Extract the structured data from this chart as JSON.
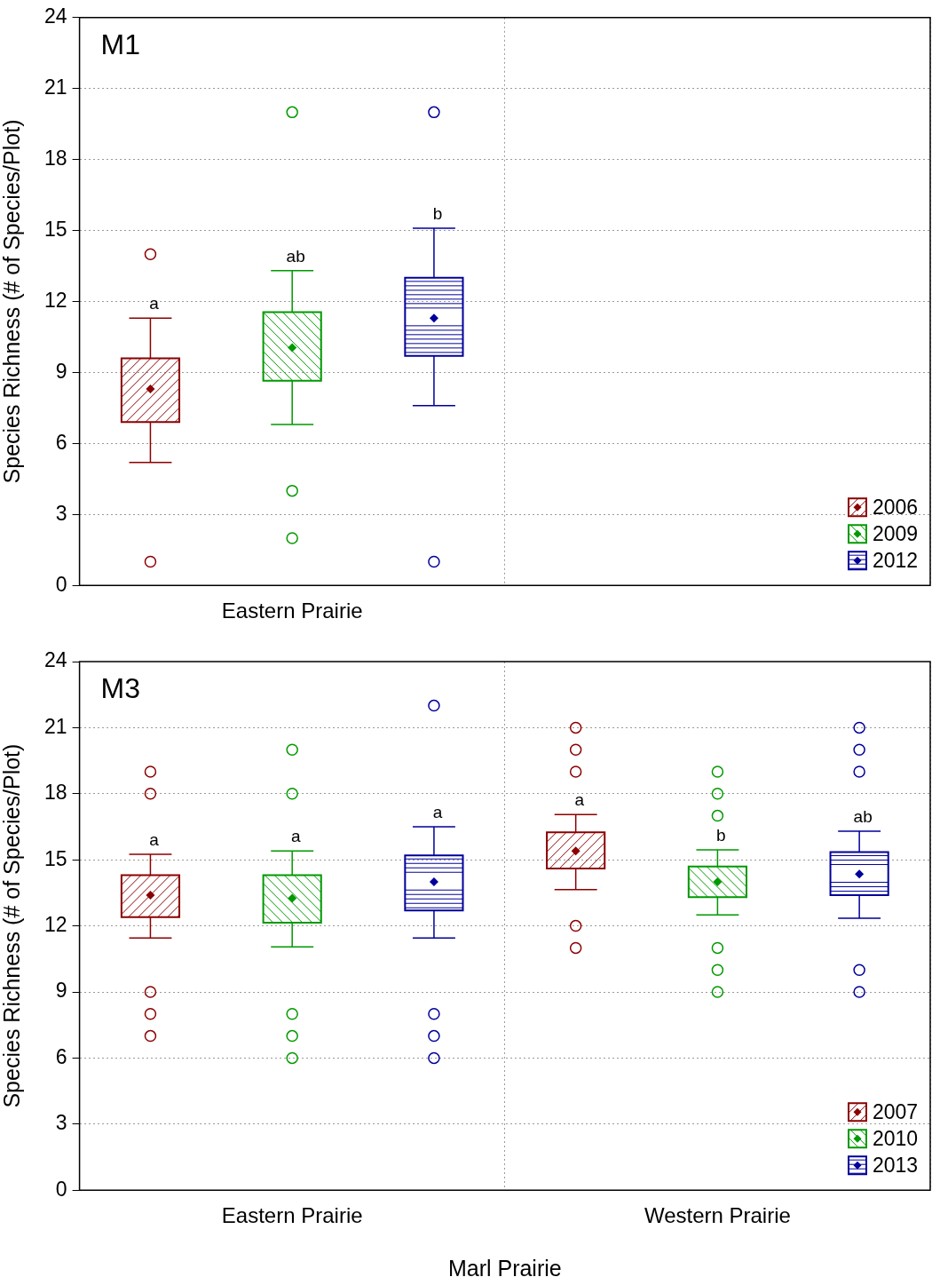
{
  "chart_data": [
    {
      "type": "box",
      "title": "M1",
      "ylabel": "Species Richness (# of Species/Plot)",
      "categories": [
        "Eastern Prairie",
        null
      ],
      "ylim": [
        0,
        24
      ],
      "yticks": [
        0,
        3,
        6,
        9,
        12,
        15,
        18,
        21,
        24
      ],
      "grid": true,
      "legend": "bottom right",
      "series": [
        {
          "name": "2006",
          "color": "#8b0000",
          "boxes": [
            {
              "low": 5.2,
              "q1": 6.9,
              "median": 8.3,
              "q3": 9.6,
              "high": 11.3,
              "outliers": [
                14,
                1
              ]
            },
            null
          ]
        },
        {
          "name": "2009",
          "color": "#009900",
          "boxes": [
            {
              "low": 6.8,
              "q1": 8.65,
              "median": 10.05,
              "q3": 11.55,
              "high": 13.3,
              "outliers": [
                20,
                4,
                2
              ]
            },
            null
          ]
        },
        {
          "name": "2012",
          "color": "#000099",
          "boxes": [
            {
              "low": 7.6,
              "q1": 9.7,
              "median": 11.3,
              "q3": 13.0,
              "high": 15.1,
              "outliers": [
                20,
                1
              ]
            },
            null
          ]
        }
      ],
      "annotations": [
        "a",
        "ab",
        "b"
      ]
    },
    {
      "type": "box",
      "title": "M3",
      "ylabel": "Species Richness (# of Species/Plot)",
      "xlabel": "Marl Prairie",
      "categories": [
        "Eastern Prairie",
        "Western Prairie"
      ],
      "ylim": [
        0,
        24
      ],
      "yticks": [
        0,
        3,
        6,
        9,
        12,
        15,
        18,
        21,
        24
      ],
      "grid": true,
      "legend": "bottom right",
      "series": [
        {
          "name": "2007",
          "color": "#8b0000",
          "boxes": [
            {
              "low": 11.45,
              "q1": 12.4,
              "median": 13.4,
              "q3": 14.3,
              "high": 15.25,
              "outliers": [
                19,
                18,
                9,
                8,
                7
              ]
            },
            {
              "low": 13.65,
              "q1": 14.6,
              "median": 15.4,
              "q3": 16.25,
              "high": 17.05,
              "outliers": [
                21,
                20,
                19,
                12,
                11
              ]
            }
          ]
        },
        {
          "name": "2010",
          "color": "#009900",
          "boxes": [
            {
              "low": 11.05,
              "q1": 12.15,
              "median": 13.25,
              "q3": 14.3,
              "high": 15.4,
              "outliers": [
                20,
                18,
                8,
                7,
                6
              ]
            },
            {
              "low": 12.5,
              "q1": 13.3,
              "median": 14.0,
              "q3": 14.7,
              "high": 15.45,
              "outliers": [
                19,
                18,
                17,
                11,
                10,
                9
              ]
            }
          ]
        },
        {
          "name": "2013",
          "color": "#000099",
          "boxes": [
            {
              "low": 11.45,
              "q1": 12.7,
              "median": 14.0,
              "q3": 15.2,
              "high": 16.5,
              "outliers": [
                22,
                8,
                7,
                6
              ]
            },
            {
              "low": 12.35,
              "q1": 13.4,
              "median": 14.35,
              "q3": 15.35,
              "high": 16.3,
              "outliers": [
                21,
                20,
                19,
                10,
                9
              ]
            }
          ]
        }
      ],
      "annotations": [
        "a",
        "a",
        "a",
        "a",
        "b",
        "ab"
      ]
    }
  ]
}
